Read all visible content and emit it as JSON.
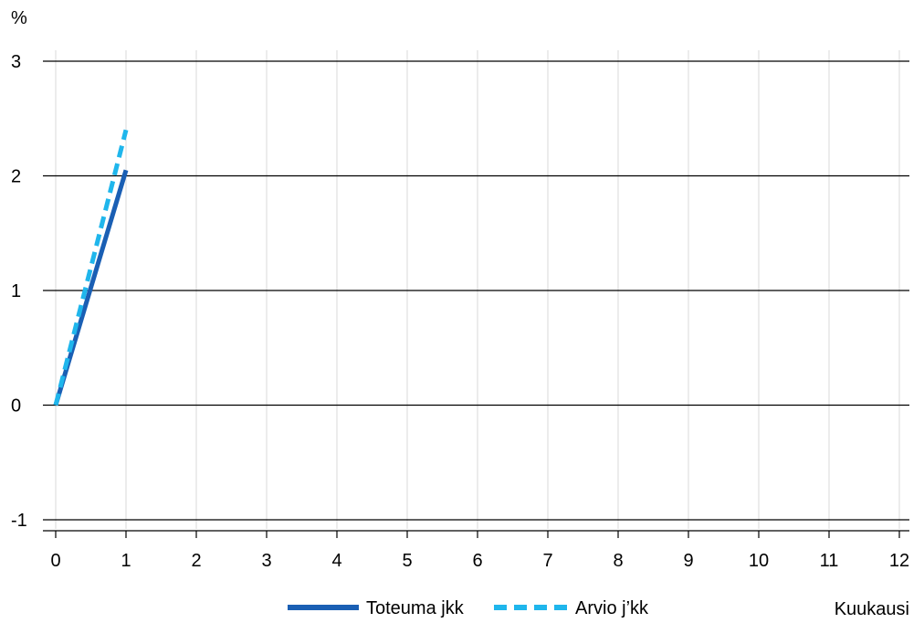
{
  "chart_data": {
    "type": "line",
    "y_unit_label": "%",
    "xlabel": "Kuukausi",
    "ylabel": "",
    "title": "",
    "xlim": [
      0,
      12
    ],
    "ylim": [
      -1,
      3
    ],
    "x_ticks": [
      0,
      1,
      2,
      3,
      4,
      5,
      6,
      7,
      8,
      9,
      10,
      11,
      12
    ],
    "y_ticks": [
      -1,
      0,
      1,
      2,
      3
    ],
    "grid": {
      "horizontal": true,
      "vertical": true
    },
    "legend_position": "bottom",
    "series": [
      {
        "name": "Toteuma jkk",
        "style": "solid",
        "color": "#1a5fb4",
        "x": [
          0,
          1
        ],
        "y": [
          0,
          2.05
        ]
      },
      {
        "name": "Arvio j’kk",
        "style": "dashed",
        "color": "#1fb6ec",
        "x": [
          0,
          1
        ],
        "y": [
          0,
          2.4
        ]
      }
    ]
  }
}
